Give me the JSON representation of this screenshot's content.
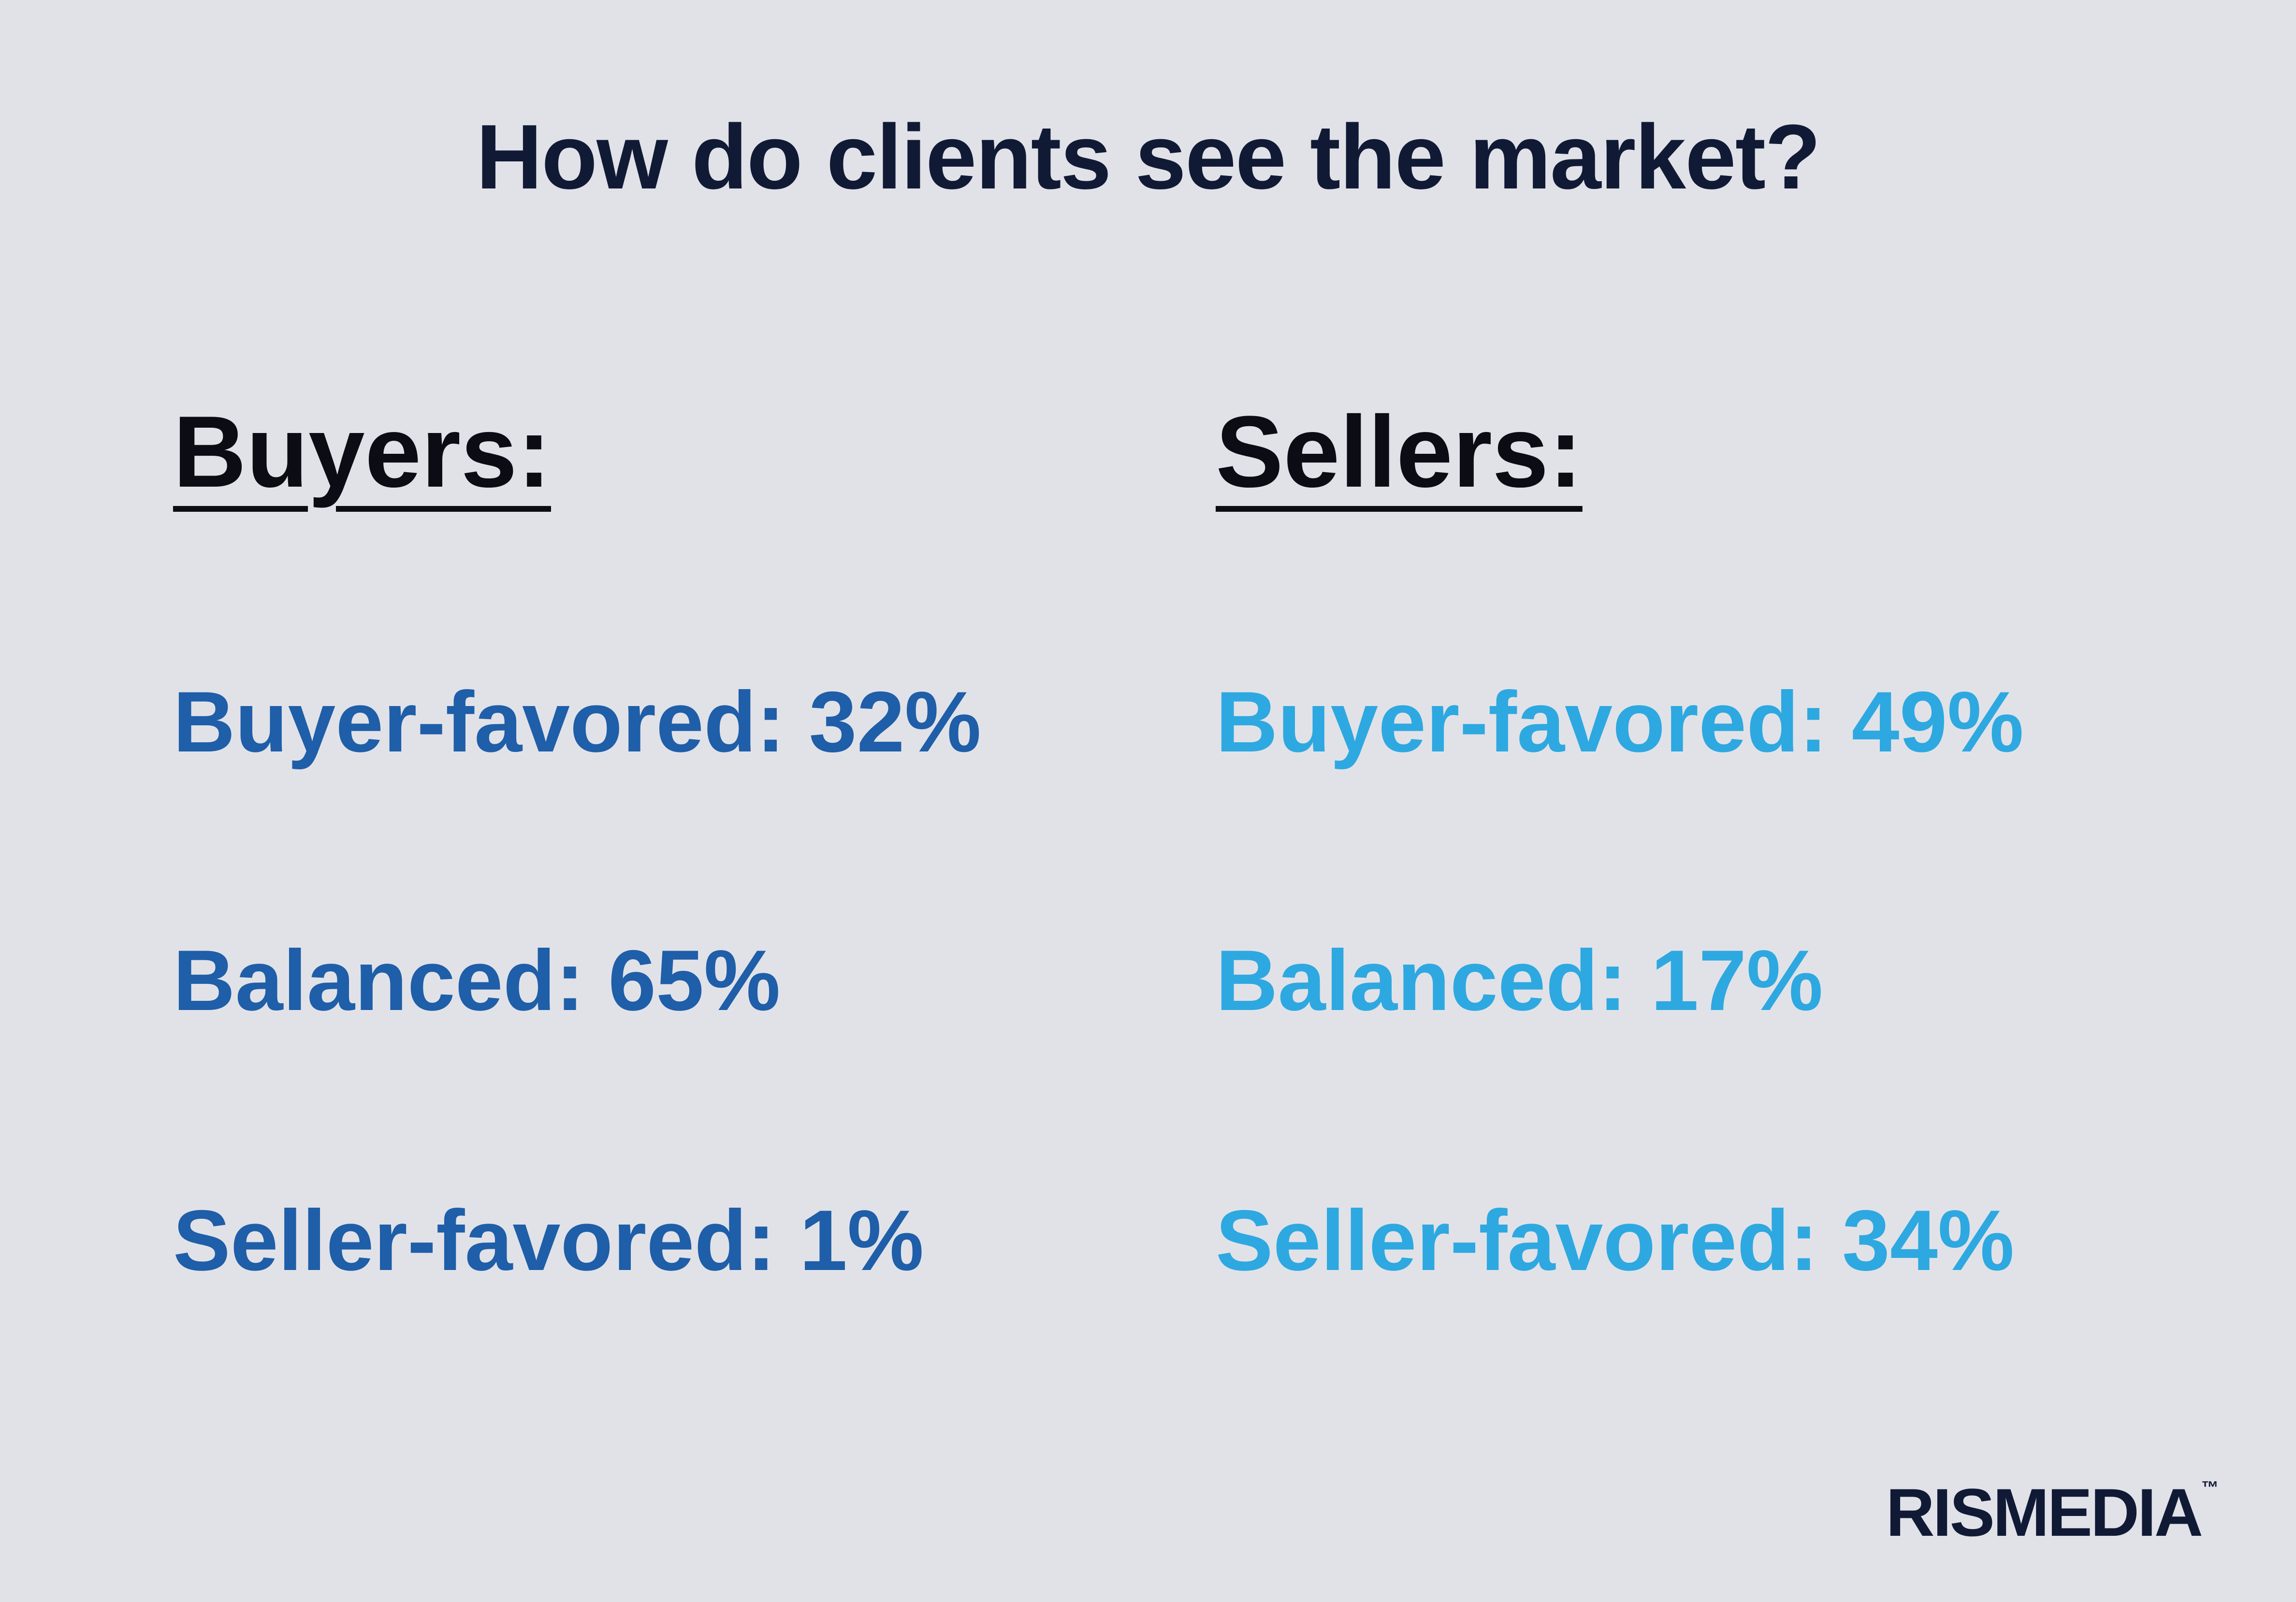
{
  "header": {
    "title": "How do clients see the market?"
  },
  "columns": [
    {
      "heading": "Buyers:",
      "items": [
        {
          "label": "Buyer-favored:",
          "value": "32%"
        },
        {
          "label": "Balanced:",
          "value": "65%"
        },
        {
          "label": "Seller-favored:",
          "value": "1%"
        }
      ]
    },
    {
      "heading": "Sellers:",
      "items": [
        {
          "label": "Buyer-favored:",
          "value": "49%"
        },
        {
          "label": "Balanced:",
          "value": "17%"
        },
        {
          "label": "Seller-favored:",
          "value": "34%"
        }
      ]
    }
  ],
  "logo": {
    "text": "RISMEDIA",
    "mark": "™"
  }
}
